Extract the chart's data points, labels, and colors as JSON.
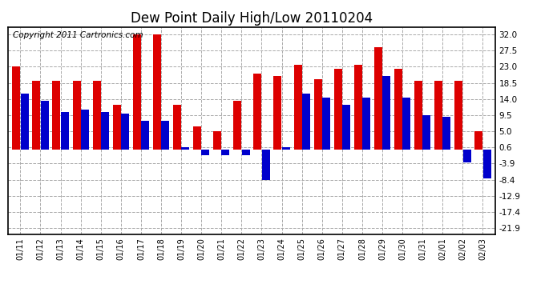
{
  "title": "Dew Point Daily High/Low 20110204",
  "copyright_text": "Copyright 2011 Cartronics.com",
  "dates": [
    "01/11",
    "01/12",
    "01/13",
    "01/14",
    "01/15",
    "01/16",
    "01/17",
    "01/18",
    "01/19",
    "01/20",
    "01/21",
    "01/22",
    "01/23",
    "01/24",
    "01/25",
    "01/26",
    "01/27",
    "01/28",
    "01/29",
    "01/30",
    "01/31",
    "02/01",
    "02/02",
    "02/03"
  ],
  "high_values": [
    23.0,
    19.0,
    19.0,
    19.0,
    19.0,
    12.5,
    32.0,
    32.0,
    12.5,
    6.5,
    5.0,
    13.5,
    21.0,
    20.5,
    23.5,
    19.5,
    22.5,
    23.5,
    28.5,
    22.5,
    19.0,
    19.0,
    19.0,
    5.0
  ],
  "low_values": [
    15.5,
    13.5,
    10.5,
    11.0,
    10.5,
    10.0,
    8.0,
    8.0,
    0.6,
    -1.5,
    -1.5,
    -1.5,
    -8.5,
    0.6,
    15.5,
    14.5,
    12.5,
    14.5,
    20.5,
    14.5,
    9.5,
    9.0,
    -3.5,
    -8.0
  ],
  "bar_color_high": "#dd0000",
  "bar_color_low": "#0000cc",
  "background_color": "#ffffff",
  "plot_bg_color": "#ffffff",
  "grid_color": "#aaaaaa",
  "yticks": [
    32.0,
    27.5,
    23.0,
    18.5,
    14.0,
    9.5,
    5.0,
    0.6,
    -3.9,
    -8.4,
    -12.9,
    -17.4,
    -21.9
  ],
  "ylim": [
    -23.5,
    34.0
  ],
  "title_fontsize": 12,
  "copyright_fontsize": 7.5
}
